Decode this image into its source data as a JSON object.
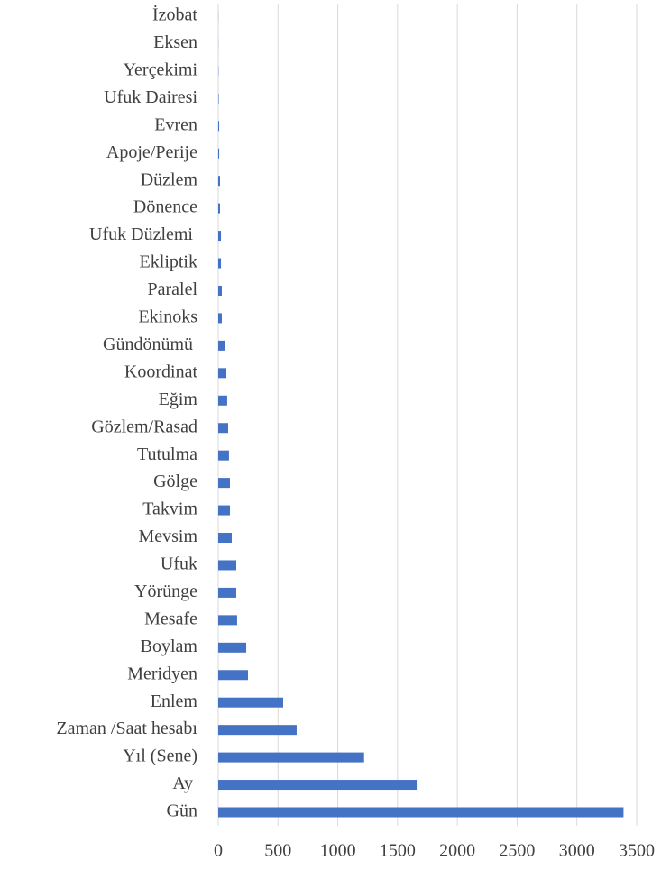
{
  "chart_data": {
    "type": "barh",
    "categories": [
      "İzobat",
      "Eksen",
      "Yerçekimi",
      "Ufuk Dairesi",
      "Evren",
      "Apoje/Perije",
      "Düzlem",
      "Dönence",
      "Ufuk Düzlemi ",
      "Ekliptik",
      "Paralel",
      "Ekinoks",
      "Gündönümü ",
      "Koordinat",
      "Eğim",
      "Gözlem/Rasad",
      "Tutulma",
      "Gölge",
      "Takvim",
      "Mevsim",
      "Ufuk",
      "Yörünge",
      "Mesafe",
      "Boylam",
      "Meridyen",
      "Enlem",
      "Zaman /Saat hesabı",
      "Yıl (Sene)",
      "Ay ",
      "Gün"
    ],
    "values": [
      1,
      1,
      2,
      4,
      8,
      8,
      15,
      15,
      23,
      23,
      30,
      30,
      60,
      68,
      75,
      83,
      90,
      98,
      98,
      113,
      151,
      151,
      158,
      234,
      249,
      543,
      656,
      1220,
      1660,
      3390
    ],
    "color": "#4472c4",
    "xlim": [
      0,
      3500
    ],
    "xticks": [
      0,
      500,
      1000,
      1500,
      2000,
      2500,
      3000,
      3500
    ],
    "grid": true
  }
}
